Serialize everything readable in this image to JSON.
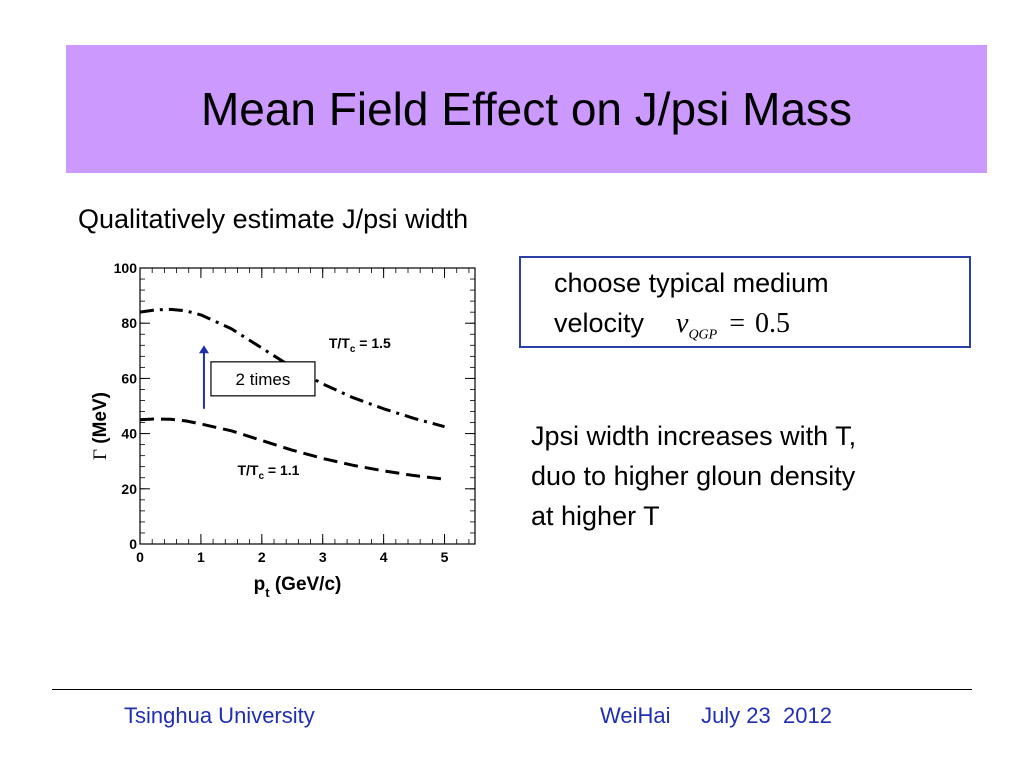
{
  "slide": {
    "title": "Mean Field Effect on J/psi Mass",
    "subtitle": "Qualitatively estimate J/psi width",
    "velocity_box": {
      "line1": "choose typical medium",
      "line2": "velocity",
      "formula": {
        "var": "v",
        "sub": "QGP",
        "op": "=",
        "value": "0.5"
      }
    },
    "width_text": [
      "Jpsi width increases with T,",
      "duo to higher gloun density",
      "at higher T"
    ],
    "footer": {
      "left": "Tsinghua University",
      "right": "WeiHai     July 23  2012"
    },
    "colors": {
      "title_band": "#cc99ff",
      "footer_text": "#1f2fb0",
      "box_border": "#2b3fa8",
      "arrow": "#1f2fb0"
    }
  },
  "chart_data": {
    "type": "line",
    "xlabel": {
      "main": "p",
      "sub": "t",
      "rest": " (GeV/c)"
    },
    "ylabel": {
      "symbol": "Γ",
      "rest": " (MeV)"
    },
    "xlim": [
      0,
      5.5
    ],
    "ylim": [
      0,
      100
    ],
    "xticks": [
      0,
      1,
      2,
      3,
      4,
      5
    ],
    "yticks": [
      0,
      20,
      40,
      60,
      80,
      100
    ],
    "series": [
      {
        "name": "T/Tc = 1.5",
        "label_main": "T/T",
        "label_sub": "c",
        "label_rest": " = 1.5",
        "style": "dash-dot",
        "x": [
          0,
          0.25,
          0.5,
          0.75,
          1,
          1.5,
          2,
          2.5,
          3,
          3.5,
          4,
          4.5,
          5
        ],
        "y": [
          84,
          84.8,
          85,
          84.5,
          83,
          78,
          71,
          64,
          58,
          53,
          49,
          45.5,
          42.5
        ]
      },
      {
        "name": "T/Tc = 1.1",
        "label_main": "T/T",
        "label_sub": "c",
        "label_rest": " = 1.1",
        "style": "dash",
        "x": [
          0,
          0.25,
          0.5,
          0.75,
          1,
          1.5,
          2,
          2.5,
          3,
          3.5,
          4,
          4.5,
          5
        ],
        "y": [
          45,
          45.3,
          45.2,
          44.6,
          43.5,
          41,
          37.5,
          34,
          31,
          28.5,
          26.5,
          24.8,
          23.5
        ]
      }
    ],
    "annotation": {
      "text": "2 times",
      "arrow_x": 1.05,
      "arrow_from_y": 49,
      "arrow_to_y": 72
    }
  }
}
